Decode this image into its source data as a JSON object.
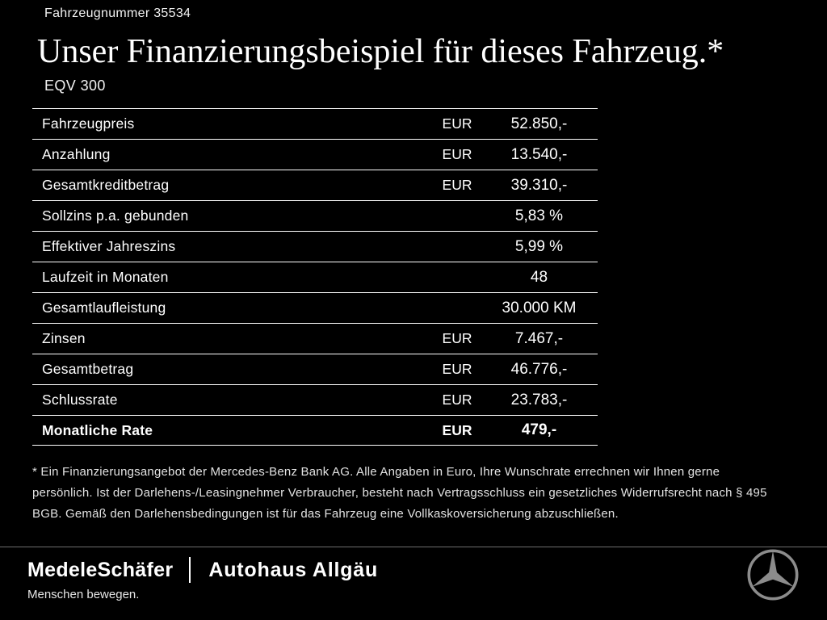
{
  "header": {
    "vehicle_number": "Fahrzeugnummer 35534",
    "title": "Unser Finanzierungsbeispiel für dieses Fahrzeug.*",
    "model": "EQV 300"
  },
  "table": {
    "rows": [
      {
        "label": "Fahrzeugpreis",
        "currency": "EUR",
        "value": "52.850,-",
        "bold": false
      },
      {
        "label": "Anzahlung",
        "currency": "EUR",
        "value": "13.540,-",
        "bold": false
      },
      {
        "label": "Gesamtkreditbetrag",
        "currency": "EUR",
        "value": "39.310,-",
        "bold": false
      },
      {
        "label": "Sollzins p.a. gebunden",
        "currency": "",
        "value": "5,83 %",
        "bold": false
      },
      {
        "label": "Effektiver Jahreszins",
        "currency": "",
        "value": "5,99 %",
        "bold": false
      },
      {
        "label": "Laufzeit in Monaten",
        "currency": "",
        "value": "48",
        "bold": false
      },
      {
        "label": "Gesamtlaufleistung",
        "currency": "",
        "value": "30.000 KM",
        "bold": false
      },
      {
        "label": "Zinsen",
        "currency": "EUR",
        "value": "7.467,-",
        "bold": false
      },
      {
        "label": "Gesamtbetrag",
        "currency": "EUR",
        "value": "46.776,-",
        "bold": false
      },
      {
        "label": "Schlussrate",
        "currency": "EUR",
        "value": "23.783,-",
        "bold": false
      },
      {
        "label": "Monatliche Rate",
        "currency": "EUR",
        "value": "479,-",
        "bold": true
      }
    ]
  },
  "footnote": "* Ein Finanzierungsangebot der Mercedes-Benz Bank AG. Alle Angaben in Euro, Ihre Wunschrate errechnen wir Ihnen gerne persönlich. Ist der Darlehens-/Leasingnehmer Verbraucher, besteht nach Vertragsschluss ein gesetzliches Widerrufsrecht nach § 495 BGB. Gemäß den Darlehensbedingungen ist für das Fahrzeug eine Vollkaskoversicherung abzuschließen.",
  "footer": {
    "dealer_primary": "MedeleSchäfer",
    "dealer_secondary": "Autohaus Allgäu",
    "tagline": "Menschen bewegen.",
    "brand_logo": "mercedes-star"
  },
  "colors": {
    "background": "#000000",
    "text": "#ffffff",
    "table_divider": "#ffffff",
    "footer_divider": "#6f6f6f",
    "star": "#8c8c8c"
  }
}
